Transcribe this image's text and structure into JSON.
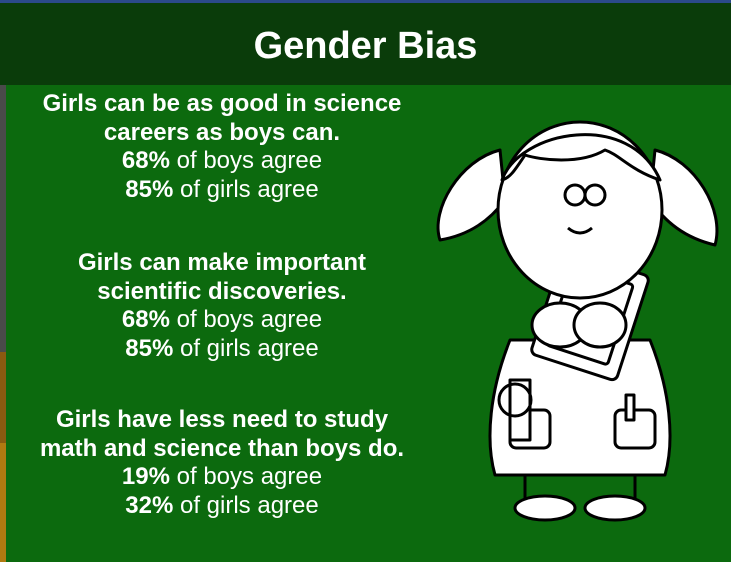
{
  "header": {
    "title": "Gender Bias"
  },
  "items": [
    {
      "lines": [
        "Girls can be as good in science",
        "careers as boys can."
      ],
      "boys": {
        "percent": "68%",
        "text": "of boys agree"
      },
      "girls": {
        "percent": "85%",
        "text": "of girls agree"
      }
    },
    {
      "lines": [
        "Girls can make important",
        "scientific discoveries."
      ],
      "boys": {
        "percent": "68%",
        "text": "of boys agree"
      },
      "girls": {
        "percent": "85%",
        "text": "of girls agree"
      }
    },
    {
      "lines": [
        "Girls have less need to study",
        "math and science than boys do."
      ],
      "boys": {
        "percent": "19%",
        "text": "of boys agree"
      },
      "girls": {
        "percent": "32%",
        "text": "of girls agree"
      }
    }
  ]
}
